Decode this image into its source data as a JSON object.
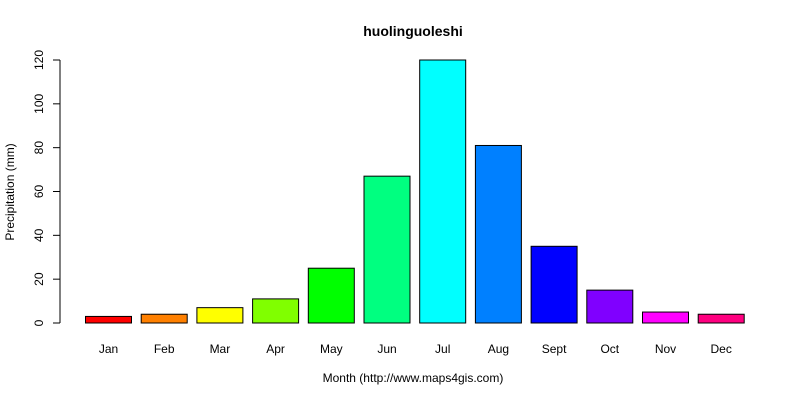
{
  "chart_data": {
    "type": "bar",
    "title": "huolinguoleshi",
    "xlabel": "Month (http://www.maps4gis.com)",
    "ylabel": "Precipitation (mm)",
    "categories": [
      "Jan",
      "Feb",
      "Mar",
      "Apr",
      "May",
      "Jun",
      "Jul",
      "Aug",
      "Sept",
      "Oct",
      "Nov",
      "Dec"
    ],
    "values": [
      3,
      4,
      7,
      11,
      25,
      67,
      120,
      81,
      35,
      15,
      5,
      4
    ],
    "colors": [
      "#FF0000",
      "#FF8000",
      "#FFFF00",
      "#80FF00",
      "#00FF00",
      "#00FF80",
      "#00FFFF",
      "#0080FF",
      "#0000FF",
      "#8000FF",
      "#FF00FF",
      "#FF0080"
    ],
    "ylim": [
      0,
      120
    ],
    "yticks": [
      0,
      20,
      40,
      60,
      80,
      100,
      120
    ],
    "grid": false,
    "legend": "none"
  }
}
